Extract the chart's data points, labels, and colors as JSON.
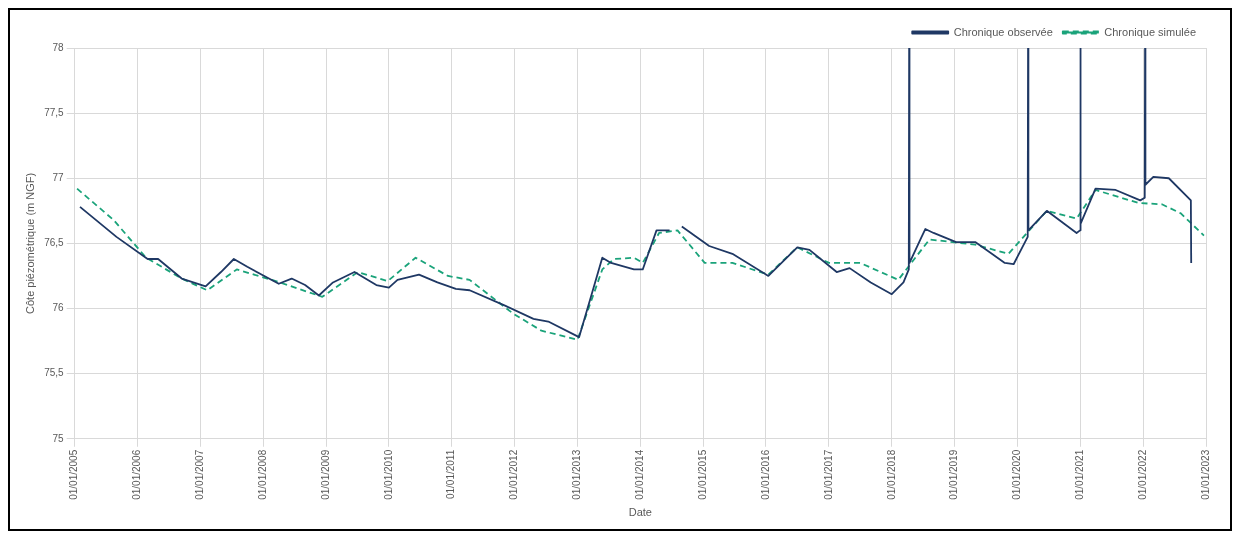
{
  "chart_data": {
    "type": "line",
    "xlabel": "Date",
    "ylabel": "Côte piézométrique (m NGF)",
    "legend": "top right",
    "grid": true,
    "xlim": [
      "2005-01-01",
      "2023-01-01"
    ],
    "xticks": [
      {
        "value": "2005-01-01",
        "label": "01/01/2005"
      },
      {
        "value": "2006-01-01",
        "label": "01/01/2006"
      },
      {
        "value": "2007-01-01",
        "label": "01/01/2007"
      },
      {
        "value": "2008-01-01",
        "label": "01/01/2008"
      },
      {
        "value": "2009-01-01",
        "label": "01/01/2009"
      },
      {
        "value": "2010-01-01",
        "label": "01/01/2010"
      },
      {
        "value": "2011-01-01",
        "label": "01/01/2011"
      },
      {
        "value": "2012-01-01",
        "label": "01/01/2012"
      },
      {
        "value": "2013-01-01",
        "label": "01/01/2013"
      },
      {
        "value": "2014-01-01",
        "label": "01/01/2014"
      },
      {
        "value": "2015-01-01",
        "label": "01/01/2015"
      },
      {
        "value": "2016-01-01",
        "label": "01/01/2016"
      },
      {
        "value": "2017-01-01",
        "label": "01/01/2017"
      },
      {
        "value": "2018-01-01",
        "label": "01/01/2018"
      },
      {
        "value": "2019-01-01",
        "label": "01/01/2019"
      },
      {
        "value": "2020-01-01",
        "label": "01/01/2020"
      },
      {
        "value": "2021-01-01",
        "label": "01/01/2021"
      },
      {
        "value": "2022-01-01",
        "label": "01/01/2022"
      },
      {
        "value": "2023-01-01",
        "label": "01/01/2023"
      }
    ],
    "ylim": [
      75,
      78
    ],
    "yticks": [
      75,
      {
        "value": 75.5,
        "label": "75,5"
      },
      76,
      {
        "value": 76.5,
        "label": "76,5"
      },
      77,
      {
        "value": 77.5,
        "label": "77,5"
      },
      78
    ],
    "series": [
      {
        "name": "Chronique observée",
        "color": "#1f3864",
        "line_style": "solid",
        "x": [
          "2005-02-01",
          "2005-09-01",
          "2006-03-01",
          "2006-05-01",
          "2006-09-15",
          "2007-02-01",
          "2007-05-01",
          "2007-07-15",
          "2007-10-01",
          "2008-04-01",
          "2008-06-15",
          "2008-09-01",
          "2008-11-20",
          "2009-02-10",
          "2009-06-15",
          "2009-10-20",
          "2010-01-01",
          "2010-02-20",
          "2010-06-25",
          "2010-10-10",
          "2011-01-25",
          "2011-04-15",
          "2011-11-10",
          "2012-04-20",
          "2012-07-15",
          "2013-01-10",
          "2013-03-20",
          "2013-05-25",
          "2013-07-15",
          "2013-11-25",
          "2014-01-15",
          "2014-04-05",
          "2014-06-20",
          "2014-08-01",
          "2014-08-30",
          "2015-02-05",
          "2015-06-20",
          "2016-01-15",
          "2016-07-01",
          "2016-09-10",
          "2017-02-15",
          "2017-05-01",
          "2017-09-01",
          "2018-01-01",
          "2018-03-10",
          "2018-04-10",
          "2018-04-12",
          "2018-04-14",
          "2018-06-20",
          "2018-07-15",
          "2018-09-01",
          "2019-01-10",
          "2019-05-01",
          "2019-10-20",
          "2019-12-10",
          "2020-03-01",
          "2020-03-03",
          "2020-03-05",
          "2020-06-20",
          "2020-12-10",
          "2020-12-30",
          "2021-01-01",
          "2021-01-03",
          "2021-03-30",
          "2021-07-25",
          "2021-12-15",
          "2022-01-10",
          "2022-01-12",
          "2022-01-14",
          "2022-03-01",
          "2022-05-30",
          "2022-10-05",
          "2022-10-07"
        ],
        "values": [
          76.78,
          76.55,
          76.38,
          76.38,
          76.23,
          76.17,
          76.28,
          76.38,
          76.32,
          76.19,
          76.23,
          76.18,
          76.1,
          76.2,
          76.28,
          76.18,
          76.16,
          76.22,
          76.26,
          76.2,
          76.15,
          76.14,
          76.02,
          75.92,
          75.9,
          75.78,
          76.09,
          76.39,
          76.35,
          76.3,
          76.3,
          76.6,
          76.6,
          null,
          76.63,
          76.48,
          76.42,
          76.25,
          76.47,
          76.45,
          76.28,
          76.31,
          76.2,
          76.11,
          76.2,
          76.3,
          78,
          76.35,
          76.54,
          76.61,
          76.58,
          76.51,
          76.51,
          76.35,
          76.34,
          76.55,
          78,
          76.6,
          76.75,
          76.58,
          76.6,
          78,
          76.65,
          76.92,
          76.91,
          76.83,
          76.85,
          78,
          76.95,
          77.01,
          77.0,
          76.83,
          76.35
        ]
      },
      {
        "name": "Chronique simulée",
        "color": "#1aa37a",
        "line_style": "dashed",
        "x": [
          "2005-01-15",
          "2005-08-15",
          "2006-02-20",
          "2006-09-15",
          "2007-02-10",
          "2007-08-01",
          "2008-03-15",
          "2008-12-10",
          "2009-07-05",
          "2009-12-25",
          "2010-06-05",
          "2010-12-10",
          "2011-04-15",
          "2011-12-25",
          "2012-06-05",
          "2013-01-01",
          "2013-05-25",
          "2013-08-01",
          "2013-11-25",
          "2014-01-15",
          "2014-04-20",
          "2014-08-05",
          "2015-01-10",
          "2015-06-20",
          "2016-01-15",
          "2016-07-01",
          "2017-01-01",
          "2017-07-01",
          "2018-02-08",
          "2018-08-08",
          "2019-05-01",
          "2019-11-10",
          "2020-06-20",
          "2020-12-10",
          "2021-03-30",
          "2021-12-05",
          "2022-04-20",
          "2022-08-08",
          "2022-12-20"
        ],
        "values": [
          76.92,
          76.68,
          76.39,
          76.23,
          76.14,
          76.3,
          76.21,
          76.09,
          76.28,
          76.21,
          76.39,
          76.25,
          76.22,
          75.96,
          75.83,
          75.76,
          76.3,
          76.38,
          76.39,
          76.35,
          76.58,
          76.6,
          76.35,
          76.35,
          76.26,
          76.47,
          76.35,
          76.35,
          76.22,
          76.53,
          76.49,
          76.42,
          76.75,
          76.69,
          76.91,
          76.81,
          76.8,
          76.73,
          76.56
        ]
      }
    ]
  }
}
